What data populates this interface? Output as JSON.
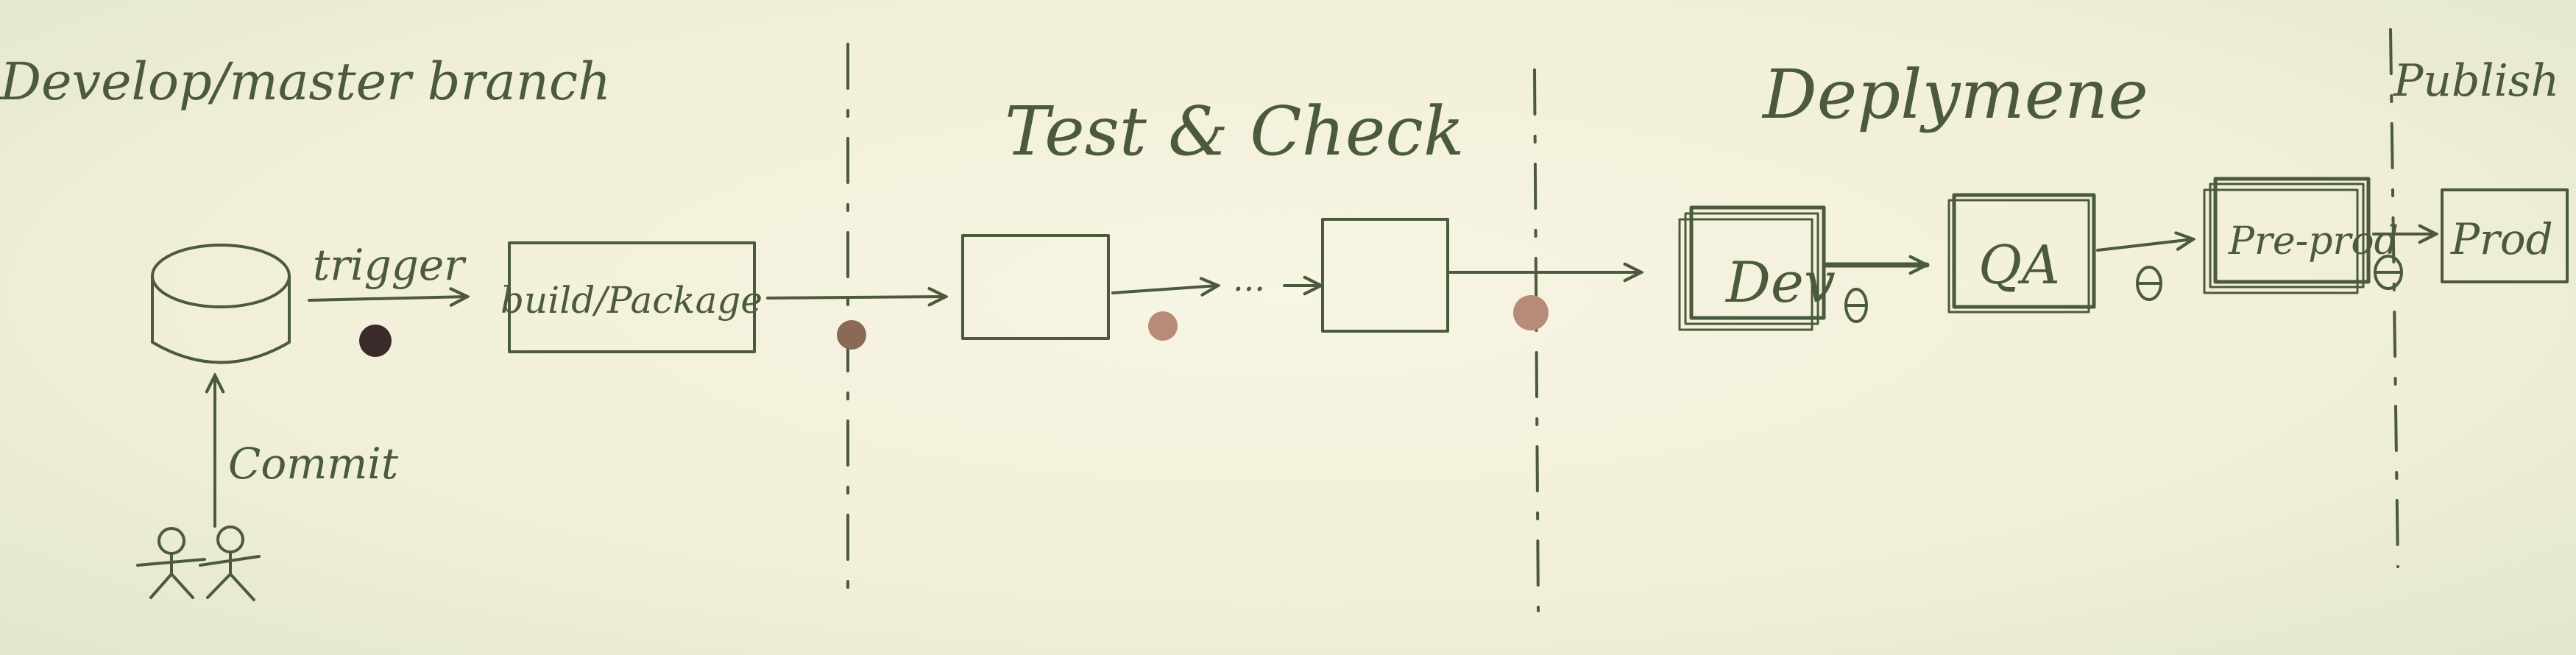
{
  "sections": {
    "branch": "Develop/master branch",
    "test": "Test & Check",
    "deploy": "Deplymene",
    "publish": "Publish"
  },
  "labels": {
    "trigger": "trigger",
    "commit": "Commit"
  },
  "boxes": {
    "build": "build/Package",
    "dev": "Dev",
    "qa": "QA",
    "preprod": "Pre-prod",
    "prod": "Prod"
  },
  "misc": {
    "ellipsis": "..."
  },
  "colors": {
    "ink": "#4a5a3a",
    "paper": "#f3f1dc",
    "gate_dark": "#3b2a2a",
    "gate_brown": "#8a6a55",
    "gate_pink": "#b88a78"
  }
}
